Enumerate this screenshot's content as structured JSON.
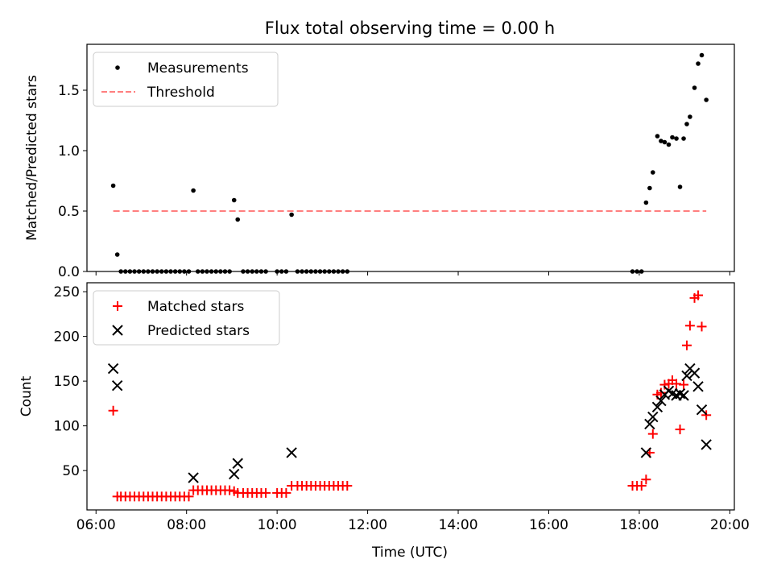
{
  "chart_data": [
    {
      "type": "scatter",
      "title": "Flux total observing time = 0.00 h",
      "xlabel": "",
      "ylabel": "Matched/Predicted stars",
      "xlim": [
        5.8,
        20.1
      ],
      "ylim": [
        0,
        1.88
      ],
      "grid": false,
      "legend_position": "top-left",
      "x_ticks": [
        6,
        8,
        10,
        12,
        14,
        16,
        18,
        20
      ],
      "y_ticks": [
        0.0,
        0.5,
        1.0,
        1.5
      ],
      "y_tick_labels": [
        "0.0",
        "0.5",
        "1.0",
        "1.5"
      ],
      "series": [
        {
          "name": "Measurements",
          "color": "#000000",
          "marker": "dot",
          "points": [
            [
              6.38,
              0.71
            ],
            [
              6.47,
              0.14
            ],
            [
              6.55,
              0
            ],
            [
              6.65,
              0
            ],
            [
              6.75,
              0
            ],
            [
              6.85,
              0
            ],
            [
              6.95,
              0
            ],
            [
              7.05,
              0
            ],
            [
              7.15,
              0
            ],
            [
              7.25,
              0
            ],
            [
              7.35,
              0
            ],
            [
              7.45,
              0
            ],
            [
              7.55,
              0
            ],
            [
              7.65,
              0
            ],
            [
              7.75,
              0
            ],
            [
              7.85,
              0
            ],
            [
              7.95,
              0
            ],
            [
              8.05,
              0
            ],
            [
              8.15,
              0.67
            ],
            [
              8.25,
              0
            ],
            [
              8.35,
              0
            ],
            [
              8.45,
              0
            ],
            [
              8.55,
              0
            ],
            [
              8.65,
              0
            ],
            [
              8.75,
              0
            ],
            [
              8.85,
              0
            ],
            [
              8.95,
              0
            ],
            [
              9.05,
              0.59
            ],
            [
              9.13,
              0.43
            ],
            [
              9.25,
              0
            ],
            [
              9.35,
              0
            ],
            [
              9.45,
              0
            ],
            [
              9.55,
              0
            ],
            [
              9.65,
              0
            ],
            [
              9.75,
              0
            ],
            [
              10.0,
              0
            ],
            [
              10.1,
              0
            ],
            [
              10.2,
              0
            ],
            [
              10.32,
              0.47
            ],
            [
              10.45,
              0
            ],
            [
              10.55,
              0
            ],
            [
              10.65,
              0
            ],
            [
              10.75,
              0
            ],
            [
              10.85,
              0
            ],
            [
              10.95,
              0
            ],
            [
              11.05,
              0
            ],
            [
              11.15,
              0
            ],
            [
              11.25,
              0
            ],
            [
              11.35,
              0
            ],
            [
              11.45,
              0
            ],
            [
              11.55,
              0
            ],
            [
              17.85,
              0
            ],
            [
              17.95,
              0
            ],
            [
              18.05,
              0
            ],
            [
              18.15,
              0.57
            ],
            [
              18.23,
              0.69
            ],
            [
              18.3,
              0.82
            ],
            [
              18.4,
              1.12
            ],
            [
              18.48,
              1.08
            ],
            [
              18.56,
              1.07
            ],
            [
              18.65,
              1.05
            ],
            [
              18.73,
              1.11
            ],
            [
              18.82,
              1.1
            ],
            [
              18.9,
              0.7
            ],
            [
              18.98,
              1.1
            ],
            [
              19.05,
              1.22
            ],
            [
              19.12,
              1.28
            ],
            [
              19.22,
              1.52
            ],
            [
              19.3,
              1.72
            ],
            [
              19.38,
              1.79
            ],
            [
              19.48,
              1.42
            ]
          ]
        },
        {
          "name": "Threshold",
          "color": "#ff7f7f",
          "style": "dashed",
          "points": [
            [
              6.38,
              0.5
            ],
            [
              19.48,
              0.5
            ]
          ]
        }
      ]
    },
    {
      "type": "scatter",
      "title": "",
      "xlabel": "Time (UTC)",
      "ylabel": "Count",
      "xlim": [
        5.8,
        20.1
      ],
      "ylim": [
        6,
        260
      ],
      "grid": false,
      "legend_position": "top-left",
      "x_ticks": [
        6,
        8,
        10,
        12,
        14,
        16,
        18,
        20
      ],
      "x_tick_labels": [
        "06:00",
        "08:00",
        "10:00",
        "12:00",
        "14:00",
        "16:00",
        "18:00",
        "20:00"
      ],
      "y_ticks": [
        50,
        100,
        150,
        200,
        250
      ],
      "y_tick_labels": [
        "50",
        "100",
        "150",
        "200",
        "250"
      ],
      "series": [
        {
          "name": "Matched stars",
          "color": "#ff0000",
          "marker": "plus",
          "points": [
            [
              6.38,
              117
            ],
            [
              6.47,
              21
            ],
            [
              6.55,
              21
            ],
            [
              6.65,
              21
            ],
            [
              6.75,
              21
            ],
            [
              6.85,
              21
            ],
            [
              6.95,
              21
            ],
            [
              7.05,
              21
            ],
            [
              7.15,
              21
            ],
            [
              7.25,
              21
            ],
            [
              7.35,
              21
            ],
            [
              7.45,
              21
            ],
            [
              7.55,
              21
            ],
            [
              7.65,
              21
            ],
            [
              7.75,
              21
            ],
            [
              7.85,
              21
            ],
            [
              7.95,
              21
            ],
            [
              8.05,
              21
            ],
            [
              8.15,
              28
            ],
            [
              8.25,
              28
            ],
            [
              8.35,
              28
            ],
            [
              8.45,
              28
            ],
            [
              8.55,
              28
            ],
            [
              8.65,
              28
            ],
            [
              8.75,
              28
            ],
            [
              8.85,
              28
            ],
            [
              8.95,
              28
            ],
            [
              9.05,
              27
            ],
            [
              9.13,
              25
            ],
            [
              9.25,
              25
            ],
            [
              9.35,
              25
            ],
            [
              9.45,
              25
            ],
            [
              9.55,
              25
            ],
            [
              9.65,
              25
            ],
            [
              9.75,
              25
            ],
            [
              10.0,
              25
            ],
            [
              10.1,
              25
            ],
            [
              10.2,
              25
            ],
            [
              10.32,
              33
            ],
            [
              10.45,
              33
            ],
            [
              10.55,
              33
            ],
            [
              10.65,
              33
            ],
            [
              10.75,
              33
            ],
            [
              10.85,
              33
            ],
            [
              10.95,
              33
            ],
            [
              11.05,
              33
            ],
            [
              11.15,
              33
            ],
            [
              11.25,
              33
            ],
            [
              11.35,
              33
            ],
            [
              11.45,
              33
            ],
            [
              11.55,
              33
            ],
            [
              17.85,
              33
            ],
            [
              17.95,
              33
            ],
            [
              18.05,
              33
            ],
            [
              18.15,
              40
            ],
            [
              18.23,
              70
            ],
            [
              18.3,
              91
            ],
            [
              18.4,
              135
            ],
            [
              18.48,
              137
            ],
            [
              18.56,
              146
            ],
            [
              18.65,
              147
            ],
            [
              18.73,
              151
            ],
            [
              18.82,
              147
            ],
            [
              18.9,
              96
            ],
            [
              18.98,
              146
            ],
            [
              19.05,
              190
            ],
            [
              19.12,
              212
            ],
            [
              19.22,
              243
            ],
            [
              19.3,
              246
            ],
            [
              19.38,
              211
            ],
            [
              19.48,
              112
            ]
          ]
        },
        {
          "name": "Predicted stars",
          "color": "#000000",
          "marker": "cross",
          "points": [
            [
              6.38,
              164
            ],
            [
              6.47,
              145
            ],
            [
              8.15,
              42
            ],
            [
              9.05,
              46
            ],
            [
              9.13,
              58
            ],
            [
              10.32,
              70
            ],
            [
              18.15,
              70
            ],
            [
              18.23,
              102
            ],
            [
              18.3,
              110
            ],
            [
              18.4,
              121
            ],
            [
              18.48,
              128
            ],
            [
              18.56,
              135
            ],
            [
              18.65,
              139
            ],
            [
              18.73,
              136
            ],
            [
              18.82,
              134
            ],
            [
              18.9,
              136
            ],
            [
              18.98,
              134
            ],
            [
              19.05,
              156
            ],
            [
              19.12,
              164
            ],
            [
              19.22,
              159
            ],
            [
              19.3,
              144
            ],
            [
              19.38,
              118
            ],
            [
              19.48,
              79
            ]
          ]
        }
      ]
    }
  ]
}
